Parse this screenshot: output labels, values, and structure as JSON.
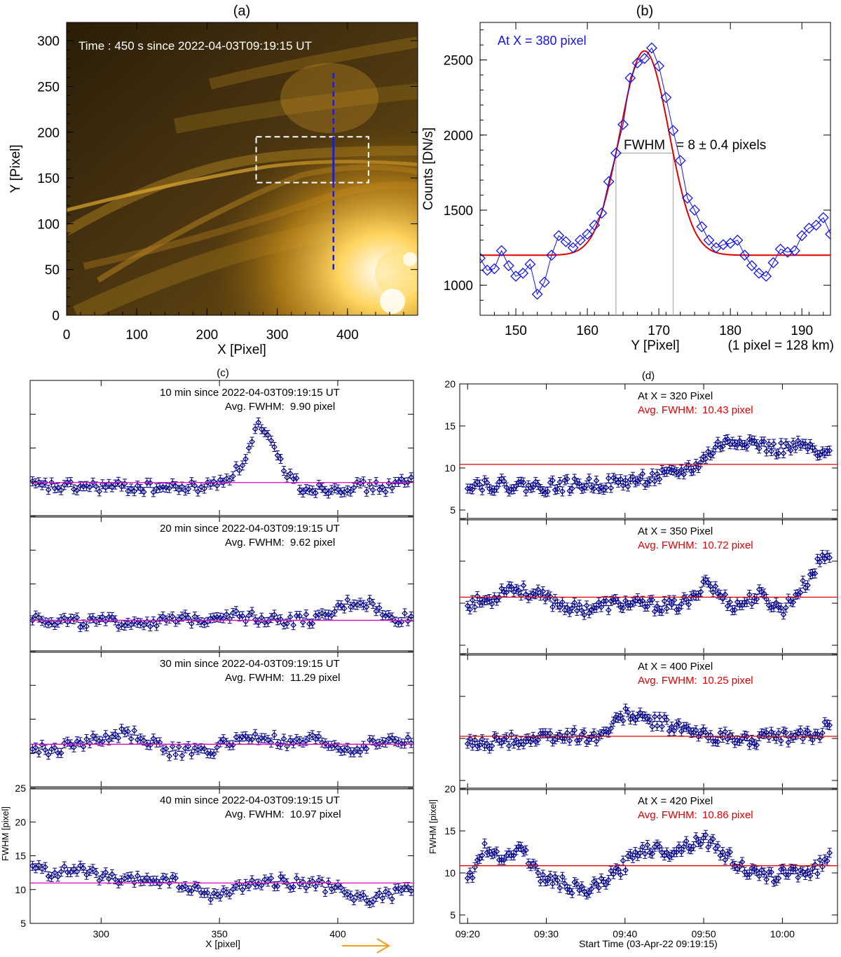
{
  "chart_data": [
    {
      "panel_id": "a",
      "label": "(a)",
      "type": "image",
      "annotation": "Time : 450 s since 2022-04-03T09:19:15 UT",
      "xlabel": "X [Pixel]",
      "ylabel": "Y [Pixel]",
      "xlim": [
        0,
        500
      ],
      "ylim": [
        0,
        320
      ],
      "xticks": [
        0,
        100,
        200,
        300,
        400
      ],
      "yticks": [
        0,
        50,
        100,
        150,
        200,
        250,
        300
      ],
      "slit_x": 380,
      "slit_y_range": [
        50,
        265
      ],
      "slit_solid_range": [
        145,
        195
      ],
      "box": {
        "x0": 270,
        "x1": 430,
        "y0": 145,
        "y1": 195
      },
      "colors": {
        "slit": "#1f1fc8",
        "box": "#ffffff"
      }
    },
    {
      "panel_id": "b",
      "label": "(b)",
      "type": "line",
      "legend_text": "At X = 380 pixel",
      "xlabel": "Y [Pixel]",
      "xlabel_note": "(1 pixel = 128 km)",
      "ylabel": "Counts  [DN/s]",
      "xlim": [
        145,
        194
      ],
      "ylim": [
        800,
        2750
      ],
      "xticks": [
        150,
        160,
        170,
        180,
        190
      ],
      "yticks": [
        1000,
        1500,
        2000,
        2500
      ],
      "fwhm_label": "FWHM",
      "fwhm_value_text": "= 8 ± 0.4 pixels",
      "fwhm_bounds": [
        164,
        172
      ],
      "fwhm_level": 1880,
      "gaussian_fit": {
        "baseline": 1200,
        "amplitude": 1360,
        "center": 168,
        "sigma": 3.4
      },
      "series": [
        {
          "name": "data",
          "color": "#1414e6",
          "x": [
            145,
            146,
            147,
            148,
            149,
            150,
            151,
            152,
            153,
            154,
            155,
            156,
            157,
            158,
            159,
            160,
            161,
            162,
            163,
            164,
            165,
            166,
            167,
            168,
            169,
            170,
            171,
            172,
            173,
            174,
            175,
            176,
            177,
            178,
            179,
            180,
            181,
            182,
            183,
            184,
            185,
            186,
            187,
            188,
            189,
            190,
            191,
            192,
            193,
            194
          ],
          "y": [
            1180,
            1100,
            1110,
            1230,
            1130,
            1060,
            1080,
            1140,
            940,
            1020,
            1200,
            1330,
            1290,
            1250,
            1300,
            1340,
            1400,
            1480,
            1690,
            1880,
            2070,
            2380,
            2480,
            2510,
            2580,
            2460,
            2250,
            2030,
            1830,
            1580,
            1500,
            1390,
            1300,
            1250,
            1270,
            1280,
            1300,
            1200,
            1130,
            1080,
            1060,
            1150,
            1240,
            1220,
            1230,
            1330,
            1380,
            1400,
            1450,
            1340
          ]
        },
        {
          "name": "fit",
          "color": "#e00000"
        }
      ]
    },
    {
      "panel_id": "c",
      "label": "(c)",
      "type": "scatter",
      "xlabel": "X  [pixel]",
      "ylabel": "FWHM [pixel]",
      "xlim": [
        270,
        432
      ],
      "ylim": [
        5,
        25
      ],
      "xticks": [
        300,
        350,
        400
      ],
      "yticks": [
        5,
        10,
        15,
        20,
        25
      ],
      "mean_line_color": "#e000c0",
      "marker_color": "#00008b",
      "subpanels": [
        {
          "title": "10 min since 2022-04-03T09:19:15 UT",
          "avg_label": "Avg. FWHM:",
          "avg_value": "9.90 pixel",
          "avg": 9.9,
          "anchors": [
            [
              270,
              9.4
            ],
            [
              285,
              9.2
            ],
            [
              300,
              9.3
            ],
            [
              315,
              9.2
            ],
            [
              330,
              9.1
            ],
            [
              345,
              9.3
            ],
            [
              352,
              10.4
            ],
            [
              358,
              11.8
            ],
            [
              363,
              15
            ],
            [
              366,
              18.5
            ],
            [
              369,
              17
            ],
            [
              373,
              14.8
            ],
            [
              378,
              11.5
            ],
            [
              385,
              9.1
            ],
            [
              395,
              9.0
            ],
            [
              405,
              9.3
            ],
            [
              420,
              9.2
            ],
            [
              432,
              10.2
            ]
          ]
        },
        {
          "title": "20 min since 2022-04-03T09:19:15 UT",
          "avg_label": "Avg. FWHM:",
          "avg_value": "9.62 pixel",
          "avg": 9.62,
          "anchors": [
            [
              270,
              10.2
            ],
            [
              280,
              9.6
            ],
            [
              295,
              9.3
            ],
            [
              315,
              9.4
            ],
            [
              330,
              9.5
            ],
            [
              345,
              10
            ],
            [
              352,
              10.6
            ],
            [
              365,
              10.1
            ],
            [
              380,
              9.6
            ],
            [
              395,
              9.9
            ],
            [
              402,
              11.8
            ],
            [
              408,
              12.4
            ],
            [
              415,
              12
            ],
            [
              420,
              10
            ],
            [
              432,
              10
            ]
          ]
        },
        {
          "title": "30 min since 2022-04-03T09:19:15 UT",
          "avg_label": "Avg. FWHM:",
          "avg_value": "11.29 pixel",
          "avg": 11.29,
          "anchors": [
            [
              270,
              10.8
            ],
            [
              280,
              10.2
            ],
            [
              290,
              11.6
            ],
            [
              300,
              12
            ],
            [
              310,
              13
            ],
            [
              318,
              12.2
            ],
            [
              328,
              10.3
            ],
            [
              345,
              10.2
            ],
            [
              355,
              11.8
            ],
            [
              368,
              12.4
            ],
            [
              380,
              11.2
            ],
            [
              390,
              12
            ],
            [
              405,
              10.4
            ],
            [
              420,
              11.8
            ],
            [
              432,
              11.6
            ]
          ]
        },
        {
          "title": "40 min since 2022-04-03T09:19:15 UT",
          "avg_label": "Avg. FWHM:",
          "avg_value": "10.97 pixel",
          "avg": 10.97,
          "anchors": [
            [
              270,
              13.4
            ],
            [
              280,
              12.4
            ],
            [
              290,
              13
            ],
            [
              300,
              12
            ],
            [
              310,
              11
            ],
            [
              320,
              11.6
            ],
            [
              330,
              11.2
            ],
            [
              340,
              9.8
            ],
            [
              350,
              9
            ],
            [
              360,
              10.8
            ],
            [
              375,
              11.2
            ],
            [
              390,
              10.8
            ],
            [
              400,
              10
            ],
            [
              410,
              8.6
            ],
            [
              420,
              8.9
            ],
            [
              425,
              9.6
            ],
            [
              432,
              10.4
            ]
          ]
        }
      ]
    },
    {
      "panel_id": "d",
      "label": "(d)",
      "type": "scatter",
      "xlabel": "Start Time (03-Apr-22 09:19:15)",
      "ylabel": "FWHM [pixel]",
      "xlim": [
        0,
        48
      ],
      "ylim": [
        4,
        20
      ],
      "xtick_values": [
        1,
        11,
        21,
        31,
        41
      ],
      "xtick_labels": [
        "09:20",
        "09:30",
        "09:40",
        "09:50",
        "10:00"
      ],
      "yticks": [
        5,
        10,
        15,
        20
      ],
      "mean_line_color": "#e00000",
      "marker_color": "#00008b",
      "subpanels": [
        {
          "title": "At X = 320 Pixel",
          "avg_label": "Avg. FWHM:",
          "avg_value": "10.43 pixel",
          "avg": 10.43,
          "anchors": [
            [
              0,
              8.2
            ],
            [
              10,
              7.8
            ],
            [
              20,
              8.2
            ],
            [
              27,
              9.2
            ],
            [
              30,
              10.2
            ],
            [
              33,
              12.8
            ],
            [
              36,
              13.4
            ],
            [
              40,
              12.2
            ],
            [
              44,
              12.6
            ],
            [
              46,
              11.2
            ],
            [
              48,
              12.6
            ]
          ]
        },
        {
          "title": "At X = 350 Pixel",
          "avg_label": "Avg. FWHM:",
          "avg_value": "10.72 pixel",
          "avg": 10.72,
          "anchors": [
            [
              0,
              9.8
            ],
            [
              4,
              10.4
            ],
            [
              6,
              12
            ],
            [
              9,
              11.2
            ],
            [
              12,
              10.2
            ],
            [
              15,
              9.2
            ],
            [
              20,
              10
            ],
            [
              27,
              9.6
            ],
            [
              30,
              10.5
            ],
            [
              31,
              13
            ],
            [
              33,
              11
            ],
            [
              35,
              9.6
            ],
            [
              38,
              11
            ],
            [
              41,
              9.2
            ],
            [
              44,
              12.4
            ],
            [
              46,
              15.4
            ],
            [
              48,
              16
            ]
          ]
        },
        {
          "title": "At X = 400 Pixel",
          "avg_label": "Avg. FWHM:",
          "avg_value": "10.25 pixel",
          "avg": 10.25,
          "anchors": [
            [
              0,
              9.2
            ],
            [
              5,
              9.6
            ],
            [
              12,
              10.2
            ],
            [
              18,
              10.3
            ],
            [
              21,
              13
            ],
            [
              23,
              12.4
            ],
            [
              26,
              11.8
            ],
            [
              30,
              10.6
            ],
            [
              36,
              9.8
            ],
            [
              42,
              10.2
            ],
            [
              46,
              10.6
            ],
            [
              48,
              14
            ]
          ]
        },
        {
          "title": "At X = 420 Pixel",
          "avg_label": "Avg. FWHM:",
          "avg_value": "10.86 pixel",
          "avg": 10.86,
          "anchors": [
            [
              0,
              7
            ],
            [
              3,
              12.8
            ],
            [
              6,
              12
            ],
            [
              8,
              13
            ],
            [
              10,
              9.6
            ],
            [
              13,
              8.8
            ],
            [
              16,
              7.6
            ],
            [
              20,
              10
            ],
            [
              23,
              13
            ],
            [
              27,
              12.6
            ],
            [
              31,
              14.2
            ],
            [
              34,
              12
            ],
            [
              37,
              10
            ],
            [
              39,
              9.4
            ],
            [
              42,
              10.2
            ],
            [
              45,
              10.2
            ],
            [
              48,
              13
            ]
          ]
        }
      ]
    }
  ]
}
